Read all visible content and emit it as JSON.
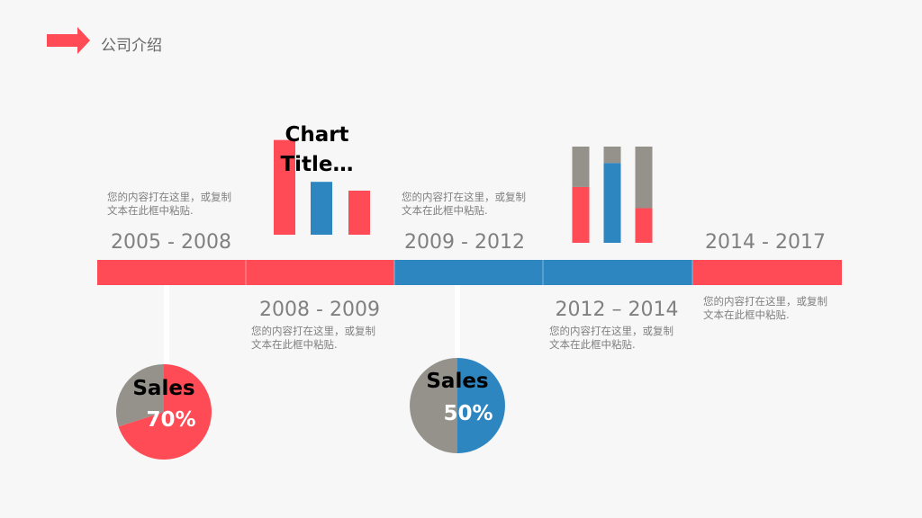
{
  "header": {
    "title": "公司介绍"
  },
  "timeline": {
    "items": [
      {
        "period": "2005 - 2008",
        "lines": [
          "您的内容打在这里，或复制",
          "文本在此框中粘贴."
        ]
      },
      {
        "period": "2008 - 2009",
        "lines": [
          "您的内容打在这里，或复制",
          "文本在此框中粘贴."
        ]
      },
      {
        "period": "2009 - 2012",
        "lines": [
          "您的内容打在这里，或复制",
          "文本在此框中粘贴."
        ]
      },
      {
        "period": "2012 – 2014",
        "lines": [
          "您的内容打在这里，或复制",
          "文本在此框中粘贴."
        ]
      },
      {
        "period": "2014 - 2017",
        "lines": [
          "您的内容打在这里，或复制",
          "文本在此框中粘贴."
        ]
      }
    ]
  },
  "chart_data": [
    {
      "type": "bar",
      "title": "Chart Title…",
      "values": [
        4.3,
        2.4,
        2.0
      ],
      "colors": [
        "#ff4b55",
        "#2e86c1",
        "#ff4b55"
      ]
    },
    {
      "type": "stacked_bar",
      "series": [
        {
          "values": [
            58,
            83,
            36
          ],
          "colors": [
            "#ff4b55",
            "#2e86c1",
            "#ff4b55"
          ]
        },
        {
          "values": [
            42,
            17,
            64
          ],
          "color": "#95928c"
        }
      ]
    },
    {
      "type": "pie",
      "title": "Sales",
      "values": [
        70,
        30
      ],
      "value_labels": [
        "70%",
        null
      ],
      "colors": [
        "#ff4b55",
        "#95928c"
      ]
    },
    {
      "type": "pie",
      "title": "Sales",
      "values": [
        50,
        50
      ],
      "value_labels": [
        "50%",
        null
      ],
      "colors": [
        "#2e86c1",
        "#95928c"
      ]
    }
  ]
}
